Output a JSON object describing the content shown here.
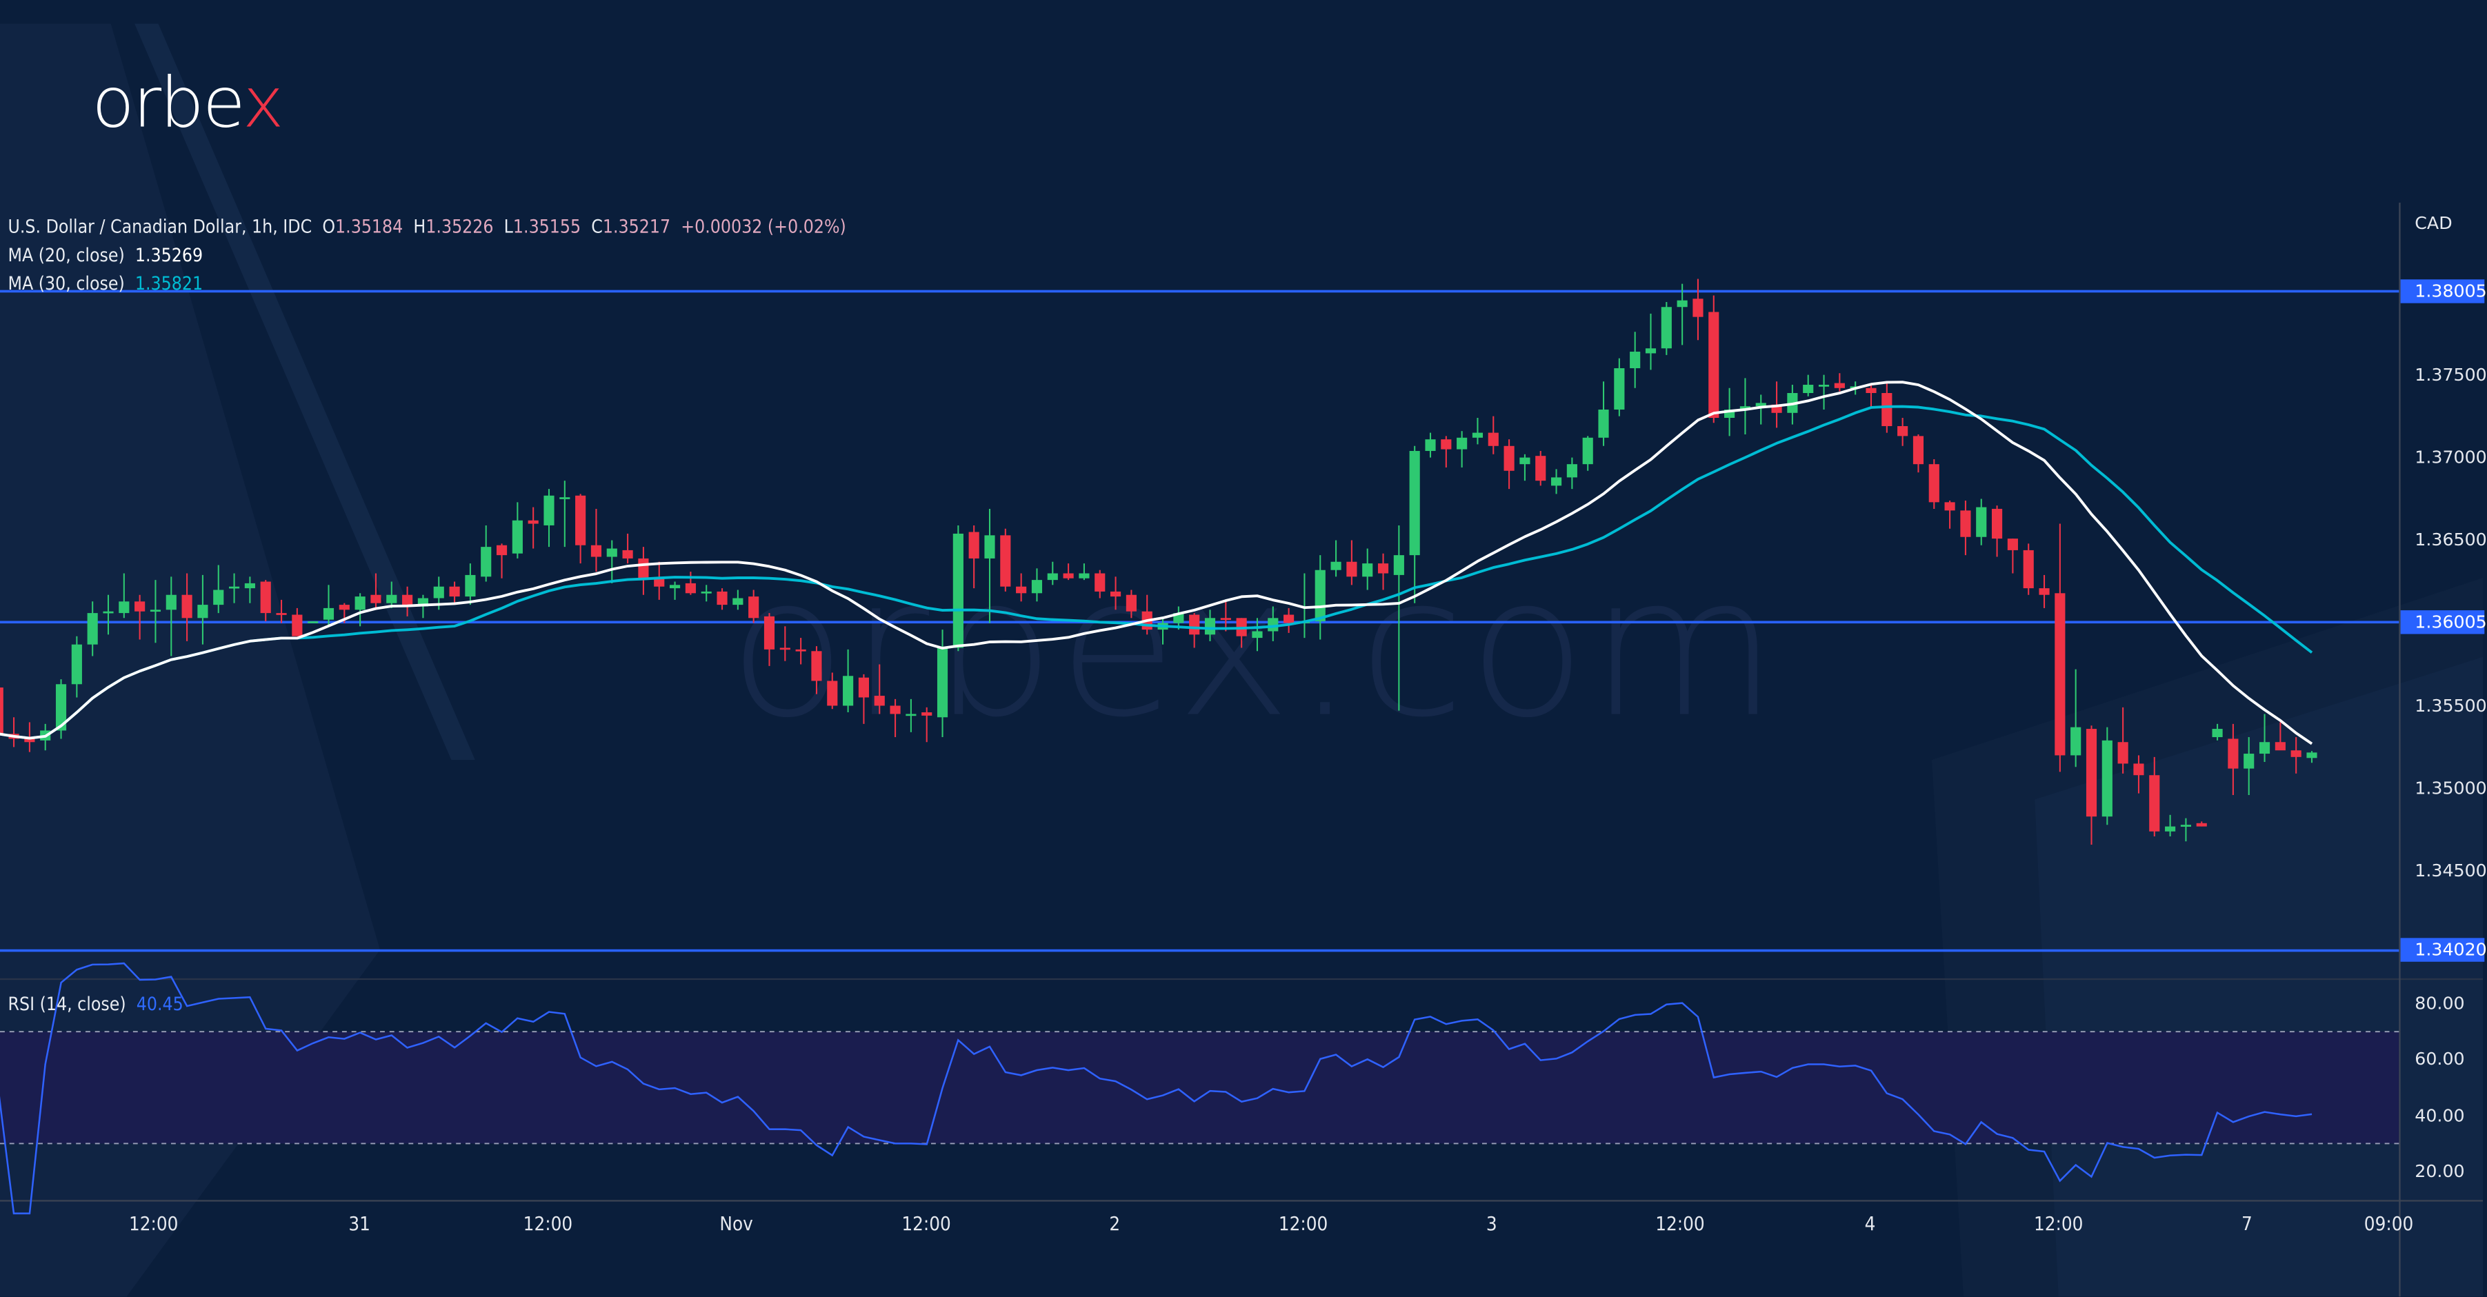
{
  "brand": {
    "logo_text": "orbex",
    "watermark": "orbex.com"
  },
  "legend": {
    "symbol": "U.S. Dollar / Canadian Dollar, 1h, IDC",
    "open_label": "O",
    "open": "1.35184",
    "high_label": "H",
    "high": "1.35226",
    "low_label": "L",
    "low": "1.35155",
    "close_label": "C",
    "close": "1.35217",
    "change": "+0.00032 (+0.02%)",
    "ma20_label": "MA (20, close)",
    "ma20_value": "1.35269",
    "ma30_label": "MA (30, close)",
    "ma30_value": "1.35821",
    "rsi_label": "RSI (14, close)",
    "rsi_value": "40.45"
  },
  "price_axis": {
    "currency": "CAD",
    "ticks": [
      "1.37500",
      "1.37000",
      "1.36500",
      "1.35500",
      "1.35000",
      "1.34500"
    ],
    "tick_values": [
      1.375,
      1.37,
      1.365,
      1.355,
      1.35,
      1.345
    ],
    "range": [
      1.3386,
      1.385
    ]
  },
  "levels": [
    {
      "value": 1.38005,
      "label": "1.38005"
    },
    {
      "value": 1.36005,
      "label": "1.36005"
    },
    {
      "value": 1.3402,
      "label": "1.34020"
    }
  ],
  "rsi_axis": {
    "ticks": [
      "80.00",
      "60.00",
      "40.00",
      "20.00"
    ],
    "tick_values": [
      80,
      60,
      40,
      20
    ],
    "band": [
      30,
      70
    ]
  },
  "time_axis": {
    "ticks": [
      "12:00",
      "31",
      "12:00",
      "Nov",
      "12:00",
      "2",
      "12:00",
      "3",
      "12:00",
      "4",
      "12:00",
      "7",
      "09:00"
    ]
  },
  "colors": {
    "background": "#0a1e3b",
    "up": "#2ec971",
    "down": "#ef3346",
    "ma20": "#ffffff",
    "ma30": "#00bcd4",
    "level": "#2962ff",
    "rsi": "#2f62ff",
    "rsi_band": "#1a1d4f"
  },
  "chart_data": {
    "type": "candlestick",
    "title": "U.S. Dollar / Canadian Dollar, 1h, IDC",
    "indicators": [
      "MA (20, close)",
      "MA (30, close)",
      "RSI (14, close)"
    ],
    "ohlc": [
      [
        1.3561,
        1.3565,
        1.353,
        1.3533
      ],
      [
        1.3533,
        1.3543,
        1.3525,
        1.353
      ],
      [
        1.3531,
        1.354,
        1.3522,
        1.3528
      ],
      [
        1.3529,
        1.3539,
        1.3523,
        1.3535
      ],
      [
        1.3535,
        1.3566,
        1.353,
        1.3563
      ],
      [
        1.3563,
        1.3592,
        1.3555,
        1.3587
      ],
      [
        1.3587,
        1.3613,
        1.358,
        1.3606
      ],
      [
        1.3606,
        1.3617,
        1.3593,
        1.3607
      ],
      [
        1.3606,
        1.363,
        1.3603,
        1.3613
      ],
      [
        1.3613,
        1.3617,
        1.359,
        1.3607
      ],
      [
        1.3607,
        1.3626,
        1.3588,
        1.3608
      ],
      [
        1.3608,
        1.3628,
        1.358,
        1.3617
      ],
      [
        1.3617,
        1.363,
        1.3589,
        1.3603
      ],
      [
        1.3603,
        1.3629,
        1.3587,
        1.3611
      ],
      [
        1.3611,
        1.3635,
        1.3606,
        1.362
      ],
      [
        1.3621,
        1.363,
        1.3612,
        1.3622
      ],
      [
        1.3621,
        1.3628,
        1.3612,
        1.3624
      ],
      [
        1.3625,
        1.3626,
        1.3601,
        1.3606
      ],
      [
        1.3606,
        1.3614,
        1.36,
        1.3605
      ],
      [
        1.3605,
        1.3609,
        1.3592,
        1.3592
      ],
      [
        1.36,
        1.3601,
        1.36,
        1.3601
      ],
      [
        1.3602,
        1.3623,
        1.3598,
        1.3609
      ],
      [
        1.3611,
        1.3612,
        1.36,
        1.3608
      ],
      [
        1.3608,
        1.3618,
        1.3598,
        1.3616
      ],
      [
        1.3617,
        1.363,
        1.3608,
        1.3612
      ],
      [
        1.3612,
        1.3625,
        1.3609,
        1.3617
      ],
      [
        1.3617,
        1.3622,
        1.3604,
        1.361
      ],
      [
        1.361,
        1.3617,
        1.3603,
        1.3615
      ],
      [
        1.3615,
        1.3628,
        1.3608,
        1.3622
      ],
      [
        1.3622,
        1.3625,
        1.3611,
        1.3616
      ],
      [
        1.3616,
        1.3636,
        1.3611,
        1.3629
      ],
      [
        1.3628,
        1.3659,
        1.3625,
        1.3646
      ],
      [
        1.3647,
        1.3648,
        1.3627,
        1.3641
      ],
      [
        1.3642,
        1.3673,
        1.3639,
        1.3662
      ],
      [
        1.3662,
        1.367,
        1.3645,
        1.366
      ],
      [
        1.3659,
        1.3681,
        1.3646,
        1.3677
      ],
      [
        1.3675,
        1.3686,
        1.3646,
        1.3676
      ],
      [
        1.3677,
        1.3678,
        1.3636,
        1.3647
      ],
      [
        1.3647,
        1.3669,
        1.3631,
        1.364
      ],
      [
        1.364,
        1.365,
        1.3624,
        1.3645
      ],
      [
        1.3644,
        1.3654,
        1.3636,
        1.3639
      ],
      [
        1.3639,
        1.3646,
        1.3617,
        1.3627
      ],
      [
        1.3627,
        1.3637,
        1.3614,
        1.3622
      ],
      [
        1.3621,
        1.3625,
        1.3614,
        1.3623
      ],
      [
        1.3624,
        1.3631,
        1.3617,
        1.3618
      ],
      [
        1.3618,
        1.3623,
        1.3613,
        1.3619
      ],
      [
        1.3619,
        1.3621,
        1.3608,
        1.3611
      ],
      [
        1.3611,
        1.362,
        1.3608,
        1.3615
      ],
      [
        1.3616,
        1.362,
        1.36,
        1.3603
      ],
      [
        1.3604,
        1.3606,
        1.3574,
        1.3584
      ],
      [
        1.3585,
        1.3598,
        1.3577,
        1.3584
      ],
      [
        1.3584,
        1.3591,
        1.3575,
        1.3583
      ],
      [
        1.3583,
        1.3586,
        1.3557,
        1.3565
      ],
      [
        1.3565,
        1.357,
        1.3548,
        1.355
      ],
      [
        1.355,
        1.3584,
        1.3546,
        1.3568
      ],
      [
        1.3567,
        1.3569,
        1.3539,
        1.3555
      ],
      [
        1.3556,
        1.3575,
        1.3545,
        1.355
      ],
      [
        1.355,
        1.3554,
        1.3531,
        1.3545
      ],
      [
        1.3544,
        1.3554,
        1.3534,
        1.3545
      ],
      [
        1.3546,
        1.3549,
        1.3528,
        1.3544
      ],
      [
        1.3543,
        1.3596,
        1.3531,
        1.3585
      ],
      [
        1.3585,
        1.3659,
        1.3583,
        1.3654
      ],
      [
        1.3655,
        1.3659,
        1.3621,
        1.3639
      ],
      [
        1.3639,
        1.3669,
        1.36,
        1.3653
      ],
      [
        1.3653,
        1.3657,
        1.3619,
        1.3622
      ],
      [
        1.3622,
        1.363,
        1.3613,
        1.3618
      ],
      [
        1.3618,
        1.3633,
        1.3613,
        1.3626
      ],
      [
        1.3626,
        1.3637,
        1.3623,
        1.363
      ],
      [
        1.363,
        1.3636,
        1.3626,
        1.3627
      ],
      [
        1.3627,
        1.3636,
        1.3626,
        1.363
      ],
      [
        1.363,
        1.3632,
        1.3615,
        1.3619
      ],
      [
        1.3619,
        1.3628,
        1.3608,
        1.3616
      ],
      [
        1.3617,
        1.362,
        1.3603,
        1.3607
      ],
      [
        1.3607,
        1.3617,
        1.3593,
        1.3596
      ],
      [
        1.3596,
        1.3603,
        1.3587,
        1.36
      ],
      [
        1.36,
        1.361,
        1.3596,
        1.3606
      ],
      [
        1.3605,
        1.3606,
        1.3585,
        1.3593
      ],
      [
        1.3593,
        1.3608,
        1.3589,
        1.3603
      ],
      [
        1.3603,
        1.3614,
        1.3595,
        1.3602
      ],
      [
        1.3603,
        1.3603,
        1.3585,
        1.3592
      ],
      [
        1.3591,
        1.3603,
        1.3583,
        1.3595
      ],
      [
        1.3595,
        1.361,
        1.3589,
        1.3603
      ],
      [
        1.3605,
        1.3609,
        1.3594,
        1.36
      ],
      [
        1.36,
        1.363,
        1.3591,
        1.3601
      ],
      [
        1.3601,
        1.3641,
        1.359,
        1.3632
      ],
      [
        1.3632,
        1.365,
        1.3628,
        1.3637
      ],
      [
        1.3637,
        1.365,
        1.3623,
        1.3628
      ],
      [
        1.3628,
        1.3645,
        1.362,
        1.3636
      ],
      [
        1.3636,
        1.3642,
        1.362,
        1.363
      ],
      [
        1.3629,
        1.3659,
        1.3547,
        1.3641
      ],
      [
        1.3641,
        1.3707,
        1.3612,
        1.3704
      ],
      [
        1.3704,
        1.3715,
        1.37,
        1.3711
      ],
      [
        1.3711,
        1.3713,
        1.3694,
        1.3705
      ],
      [
        1.3705,
        1.3716,
        1.3694,
        1.3712
      ],
      [
        1.3712,
        1.3724,
        1.3708,
        1.3715
      ],
      [
        1.3715,
        1.3725,
        1.3702,
        1.3707
      ],
      [
        1.3707,
        1.3711,
        1.3681,
        1.3692
      ],
      [
        1.3696,
        1.3702,
        1.3686,
        1.37
      ],
      [
        1.3701,
        1.3704,
        1.3683,
        1.3686
      ],
      [
        1.3683,
        1.3693,
        1.3678,
        1.3688
      ],
      [
        1.3688,
        1.37,
        1.3681,
        1.3696
      ],
      [
        1.3696,
        1.3713,
        1.3692,
        1.3712
      ],
      [
        1.3712,
        1.3746,
        1.3707,
        1.3729
      ],
      [
        1.3729,
        1.376,
        1.3725,
        1.3754
      ],
      [
        1.3754,
        1.3776,
        1.3742,
        1.3764
      ],
      [
        1.3763,
        1.3787,
        1.3753,
        1.3766
      ],
      [
        1.3766,
        1.3794,
        1.3762,
        1.3791
      ],
      [
        1.3791,
        1.3805,
        1.3768,
        1.3795
      ],
      [
        1.3796,
        1.3808,
        1.3771,
        1.3785
      ],
      [
        1.3788,
        1.3798,
        1.3721,
        1.3724
      ],
      [
        1.3724,
        1.3742,
        1.3713,
        1.3729
      ],
      [
        1.3729,
        1.3748,
        1.3714,
        1.3731
      ],
      [
        1.3731,
        1.3738,
        1.372,
        1.3733
      ],
      [
        1.3732,
        1.3746,
        1.3718,
        1.3727
      ],
      [
        1.3727,
        1.3744,
        1.372,
        1.3739
      ],
      [
        1.3739,
        1.375,
        1.3737,
        1.3744
      ],
      [
        1.3744,
        1.375,
        1.3729,
        1.3744
      ],
      [
        1.3745,
        1.3751,
        1.374,
        1.3742
      ],
      [
        1.3742,
        1.3746,
        1.3738,
        1.3743
      ],
      [
        1.3742,
        1.3745,
        1.373,
        1.3739
      ],
      [
        1.3739,
        1.3745,
        1.3715,
        1.3719
      ],
      [
        1.3719,
        1.3724,
        1.3707,
        1.3713
      ],
      [
        1.3713,
        1.3714,
        1.3691,
        1.3696
      ],
      [
        1.3696,
        1.3699,
        1.3669,
        1.3673
      ],
      [
        1.3673,
        1.3674,
        1.3657,
        1.3668
      ],
      [
        1.3668,
        1.3674,
        1.3641,
        1.3652
      ],
      [
        1.3652,
        1.3675,
        1.3647,
        1.367
      ],
      [
        1.3669,
        1.3671,
        1.364,
        1.3651
      ],
      [
        1.3651,
        1.3651,
        1.363,
        1.3644
      ],
      [
        1.3644,
        1.3648,
        1.3617,
        1.3621
      ],
      [
        1.3621,
        1.3629,
        1.3609,
        1.3617
      ],
      [
        1.3618,
        1.366,
        1.351,
        1.352
      ],
      [
        1.352,
        1.3572,
        1.3513,
        1.3537
      ],
      [
        1.3536,
        1.3538,
        1.3466,
        1.3483
      ],
      [
        1.3483,
        1.3537,
        1.3478,
        1.3529
      ],
      [
        1.3528,
        1.3549,
        1.3509,
        1.3515
      ],
      [
        1.3515,
        1.352,
        1.3497,
        1.3508
      ],
      [
        1.3508,
        1.3519,
        1.3471,
        1.3474
      ],
      [
        1.3474,
        1.3484,
        1.3471,
        1.3477
      ],
      [
        1.3477,
        1.3482,
        1.3468,
        1.3478
      ],
      [
        1.3479,
        1.348,
        1.3477,
        1.3477
      ],
      [
        1.3531,
        1.3539,
        1.3529,
        1.3536
      ],
      [
        1.353,
        1.3539,
        1.3496,
        1.3512
      ],
      [
        1.3512,
        1.3531,
        1.3496,
        1.3521
      ],
      [
        1.3521,
        1.3545,
        1.3516,
        1.3528
      ],
      [
        1.3528,
        1.354,
        1.3524,
        1.3523
      ],
      [
        1.3523,
        1.3531,
        1.3509,
        1.3519
      ],
      [
        1.35184,
        1.35226,
        1.35155,
        1.35217
      ]
    ]
  }
}
